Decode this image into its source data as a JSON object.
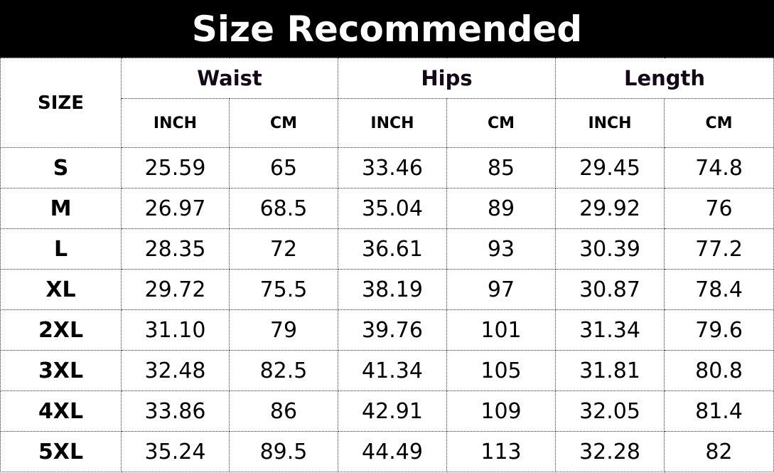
{
  "title": "Size Recommended",
  "table": {
    "size_header": "SIZE",
    "groups": [
      "Waist",
      "Hips",
      "Length"
    ],
    "units": [
      "INCH",
      "CM",
      "INCH",
      "CM",
      "INCH",
      "CM"
    ],
    "rows": [
      {
        "size": "S",
        "values": [
          "25.59",
          "65",
          "33.46",
          "85",
          "29.45",
          "74.8"
        ]
      },
      {
        "size": "M",
        "values": [
          "26.97",
          "68.5",
          "35.04",
          "89",
          "29.92",
          "76"
        ]
      },
      {
        "size": "L",
        "values": [
          "28.35",
          "72",
          "36.61",
          "93",
          "30.39",
          "77.2"
        ]
      },
      {
        "size": "XL",
        "values": [
          "29.72",
          "75.5",
          "38.19",
          "97",
          "30.87",
          "78.4"
        ]
      },
      {
        "size": "2XL",
        "values": [
          "31.10",
          "79",
          "39.76",
          "101",
          "31.34",
          "79.6"
        ]
      },
      {
        "size": "3XL",
        "values": [
          "32.48",
          "82.5",
          "41.34",
          "105",
          "31.81",
          "80.8"
        ]
      },
      {
        "size": "4XL",
        "values": [
          "33.86",
          "86",
          "42.91",
          "109",
          "32.05",
          "81.4"
        ]
      },
      {
        "size": "5XL",
        "values": [
          "35.24",
          "89.5",
          "44.49",
          "113",
          "32.28",
          "82"
        ]
      }
    ]
  }
}
